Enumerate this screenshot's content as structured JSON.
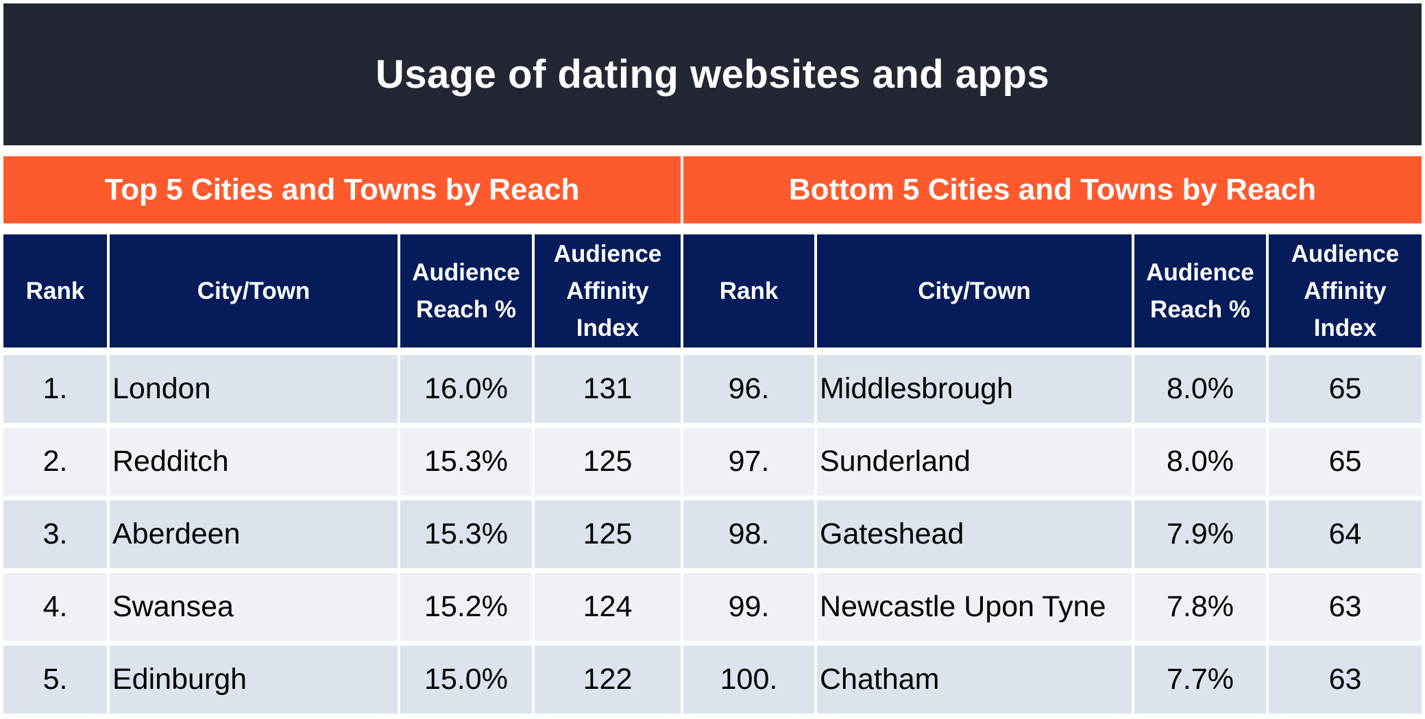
{
  "chart_data": {
    "type": "table",
    "title": "Usage of dating websites and apps",
    "sections": [
      {
        "name": "Top 5 Cities and Towns by Reach",
        "columns": [
          "Rank",
          "City/Town",
          "Audience Reach %",
          "Audience Affinity Index"
        ],
        "rows": [
          {
            "rank": "1.",
            "city": "London",
            "reach": "16.0%",
            "affinity": "131"
          },
          {
            "rank": "2.",
            "city": "Redditch",
            "reach": "15.3%",
            "affinity": "125"
          },
          {
            "rank": "3.",
            "city": "Aberdeen",
            "reach": "15.3%",
            "affinity": "125"
          },
          {
            "rank": "4.",
            "city": "Swansea",
            "reach": "15.2%",
            "affinity": "124"
          },
          {
            "rank": "5.",
            "city": "Edinburgh",
            "reach": "15.0%",
            "affinity": "122"
          }
        ]
      },
      {
        "name": "Bottom 5 Cities and Towns by Reach",
        "columns": [
          "Rank",
          "City/Town",
          "Audience Reach %",
          "Audience Affinity Index"
        ],
        "rows": [
          {
            "rank": "96.",
            "city": "Middlesbrough",
            "reach": "8.0%",
            "affinity": "65"
          },
          {
            "rank": "97.",
            "city": "Sunderland",
            "reach": "8.0%",
            "affinity": "65"
          },
          {
            "rank": "98.",
            "city": "Gateshead",
            "reach": "7.9%",
            "affinity": "64"
          },
          {
            "rank": "99.",
            "city": "Newcastle Upon Tyne",
            "reach": "7.8%",
            "affinity": "63"
          },
          {
            "rank": "100.",
            "city": "Chatham",
            "reach": "7.7%",
            "affinity": "63"
          }
        ]
      }
    ]
  },
  "colors": {
    "title_bg": "#222733",
    "section_bg": "#ff5a2d",
    "column_header_bg": "#061c5a",
    "row_odd_bg": "#dce3ec",
    "row_even_bg": "#eef1f5"
  }
}
